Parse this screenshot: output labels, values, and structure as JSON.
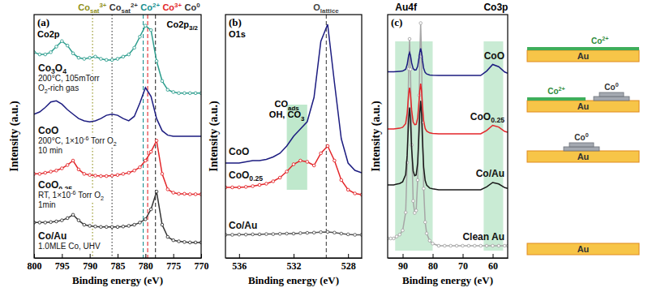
{
  "chart_data": [
    {
      "type": "line",
      "panel_label": "(a)",
      "title": "Co2p",
      "x_label": "Binding energy (eV)",
      "y_label": "Intensity (a.u.)",
      "xlim": [
        800,
        770
      ],
      "xticks": [
        800,
        795,
        790,
        785,
        780,
        775,
        770
      ],
      "ylim": [
        0,
        11
      ],
      "tick_labels": "x",
      "peak_label": [
        "Co2p",
        {
          "sub": "3/2"
        }
      ],
      "ref_lines": [
        {
          "x": 789.5,
          "label": [
            "Co",
            {
              "sub": "sat"
            },
            {
              "sup": "3+"
            }
          ],
          "color": "#8f8f18",
          "line_style": "dotted"
        },
        {
          "x": 786,
          "label": [
            "Co",
            {
              "sub": "sat"
            },
            {
              "sup": "2+"
            }
          ],
          "color": "#333333",
          "line_style": "dotted"
        },
        {
          "x": 780.4,
          "label": [
            "Co",
            {
              "sup": "2+"
            }
          ],
          "color": "#178f8f",
          "line_style": "dashed"
        },
        {
          "x": 779.6,
          "label": [
            "Co",
            {
              "sup": "3+"
            }
          ],
          "color": "#e3262a",
          "line_style": "dashed"
        },
        {
          "x": 778.2,
          "label": [
            "Co",
            {
              "sup": "0"
            }
          ],
          "color": "#333333",
          "line_style": "dashed"
        }
      ],
      "x": [
        800,
        799,
        798,
        797,
        796,
        795,
        794,
        793,
        792,
        791,
        790,
        789,
        788,
        787,
        786,
        785,
        784,
        783,
        782,
        781,
        780,
        779,
        778,
        777,
        776,
        775,
        774,
        773,
        772,
        771,
        770
      ],
      "series": [
        {
          "label": "Co/Au",
          "conditions": [
            "1.0MLE Co, UHV"
          ],
          "color": "#333333",
          "marker": "circle",
          "values": [
            1.6,
            1.6,
            1.6,
            1.62,
            1.65,
            1.7,
            1.8,
            1.95,
            1.7,
            1.5,
            1.45,
            1.42,
            1.4,
            1.4,
            1.4,
            1.4,
            1.42,
            1.45,
            1.5,
            1.6,
            1.75,
            2.2,
            3.0,
            1.5,
            0.95,
            0.8,
            0.75,
            0.72,
            0.7,
            0.7,
            0.7
          ]
        },
        {
          "label": [
            "CoO",
            {
              "sub": "0.25"
            }
          ],
          "conditions": [
            [
              "RT, 1×10",
              {
                "sup": "-6"
              },
              " Torr O",
              {
                "sub": "2"
              }
            ],
            "1min"
          ],
          "color": "#e3262a",
          "marker": "circle",
          "values": [
            3.8,
            3.8,
            3.85,
            3.9,
            3.95,
            4.05,
            4.2,
            4.4,
            4.0,
            3.8,
            3.75,
            3.72,
            3.7,
            3.7,
            3.72,
            3.75,
            3.8,
            3.85,
            3.95,
            4.1,
            4.4,
            4.8,
            5.3,
            3.8,
            3.1,
            2.95,
            2.9,
            2.9,
            2.88,
            2.88,
            2.88
          ]
        },
        {
          "label": "CoO",
          "conditions": [
            [
              "200°C, 1×10",
              {
                "sup": "-6"
              },
              " Torr O",
              {
                "sub": "2"
              }
            ],
            "10 min"
          ],
          "color": "#1c1c80",
          "values": [
            6.5,
            6.6,
            6.8,
            7.05,
            7.1,
            6.95,
            6.7,
            6.5,
            6.3,
            6.2,
            6.15,
            6.2,
            6.3,
            6.45,
            6.5,
            6.45,
            6.3,
            6.2,
            6.4,
            7.0,
            7.7,
            7.3,
            6.3,
            5.75,
            5.55,
            5.5,
            5.5,
            5.5,
            5.5,
            5.5,
            5.5
          ]
        },
        {
          "label": [
            "Co",
            {
              "sub": "3"
            },
            "O",
            {
              "sub": "4"
            }
          ],
          "conditions": [
            "200°C, 105mTorr",
            [
              "O",
              {
                "sub": "2"
              },
              "-rich gas"
            ]
          ],
          "color": "#2e9e8e",
          "marker": "circle",
          "values": [
            9.3,
            9.2,
            9.2,
            9.3,
            9.55,
            9.8,
            9.6,
            9.25,
            9.05,
            9.0,
            9.05,
            9.1,
            9.0,
            8.95,
            8.95,
            9.0,
            9.1,
            9.2,
            9.5,
            10.0,
            10.5,
            10.3,
            8.9,
            8.0,
            7.6,
            7.5,
            7.45,
            7.45,
            7.45,
            7.45,
            7.45
          ]
        }
      ]
    },
    {
      "type": "line",
      "panel_label": "(b)",
      "title": "O1s",
      "x_label": "Binding energy (eV)",
      "y_label": "Intensity (a.u.)",
      "xlim": [
        537,
        527
      ],
      "xticks": [
        536,
        532,
        528
      ],
      "ylim": [
        0,
        10
      ],
      "tick_labels": "x",
      "ref_lines": [
        {
          "x": 529.6,
          "label": [
            "O",
            {
              "sub": "lattice"
            }
          ],
          "color": "#444444",
          "line_style": "dashed"
        }
      ],
      "highlights": [
        {
          "x": [
            532.5,
            531
          ],
          "y": [
            2.8,
            6.3
          ],
          "color": "#bfe8cc",
          "lines": [
            [
              "CO",
              {
                "sub": "ads"
              }
            ],
            [
              "OH, CO",
              {
                "sub": "3"
              }
            ]
          ]
        }
      ],
      "x": [
        537,
        536.5,
        536,
        535.5,
        535,
        534.5,
        534,
        533.5,
        533,
        532.5,
        532,
        531.5,
        531,
        530.5,
        530,
        529.5,
        529,
        528.5,
        528,
        527.5,
        527
      ],
      "series": [
        {
          "label": "Co/Au",
          "color": "#555555",
          "marker": "circle",
          "values": [
            0.95,
            0.95,
            0.96,
            0.96,
            0.97,
            0.97,
            0.98,
            0.98,
            0.99,
            1.0,
            1.0,
            1.02,
            1.03,
            1.04,
            1.06,
            1.07,
            1.04,
            1.0,
            0.97,
            0.95,
            0.95
          ]
        },
        {
          "label": [
            "CoO",
            {
              "sub": "0.25"
            }
          ],
          "color": "#e3262a",
          "marker": "circle",
          "values": [
            2.9,
            2.9,
            2.9,
            2.92,
            2.95,
            3.0,
            3.05,
            3.15,
            3.3,
            3.55,
            3.85,
            4.0,
            3.95,
            3.8,
            4.3,
            4.6,
            4.0,
            3.2,
            2.8,
            2.65,
            2.6
          ]
        },
        {
          "label": "CoO",
          "color": "#1c1c80",
          "values": [
            3.9,
            3.9,
            3.9,
            3.95,
            4.0,
            4.0,
            4.05,
            4.15,
            4.3,
            4.6,
            5.0,
            5.3,
            5.6,
            6.6,
            8.9,
            9.6,
            7.2,
            4.9,
            3.9,
            3.6,
            3.5
          ]
        }
      ]
    },
    {
      "type": "line",
      "panel_label": "(c)",
      "x_label": "Binding energy (eV)",
      "y_label": "Intensity (a.u.)",
      "xlim": [
        95,
        55
      ],
      "xticks": [
        90,
        80,
        70,
        60
      ],
      "ylim": [
        0,
        10
      ],
      "tick_labels": "x",
      "highlights": [
        {
          "x": [
            92.5,
            80
          ],
          "y": [
            0.3,
            8.9
          ],
          "color": "#c9ebd4",
          "label": "Au4f"
        },
        {
          "x": [
            63,
            56.5
          ],
          "y": [
            0.3,
            8.9
          ],
          "color": "#c9ebd4",
          "label": "Co3p"
        }
      ],
      "x": [
        95,
        94,
        93,
        92,
        91,
        90,
        89,
        88.5,
        88,
        87.7,
        87.4,
        87,
        86.5,
        86,
        85.5,
        85,
        84.5,
        84.3,
        84,
        83.7,
        83.4,
        83,
        82.5,
        82,
        81,
        80,
        78,
        76,
        74,
        72,
        70,
        68,
        66,
        64,
        62,
        60,
        58,
        56,
        55
      ],
      "series": [
        {
          "label": "Clean Au",
          "color": "#a6a6a6",
          "marker": "circle",
          "values": [
            0.8,
            0.8,
            0.8,
            0.88,
            0.96,
            1.13,
            1.87,
            3.92,
            7.77,
            9.0,
            7.75,
            4.64,
            2.34,
            1.85,
            1.95,
            3.2,
            6.68,
            8.31,
            9.65,
            8.28,
            5.57,
            2.85,
            1.47,
            1.01,
            0.71,
            0.59,
            0.5,
            0.5,
            0.5,
            0.5,
            0.5,
            0.5,
            0.5,
            0.5,
            0.5,
            0.5,
            0.5,
            0.5,
            0.5
          ]
        },
        {
          "label": "Co/Au",
          "color": "#1a1a1a",
          "values": [
            3.0,
            3.0,
            3.0,
            3.03,
            3.06,
            3.13,
            3.42,
            4.22,
            5.72,
            6.18,
            5.69,
            4.47,
            3.57,
            3.38,
            3.41,
            3.9,
            5.28,
            5.93,
            6.46,
            5.91,
            4.82,
            3.73,
            3.18,
            2.99,
            2.87,
            2.84,
            2.8,
            2.8,
            2.8,
            2.8,
            2.8,
            2.8,
            2.8,
            2.8,
            2.92,
            3.1,
            3.04,
            2.89,
            2.86
          ]
        },
        {
          "label": [
            "CoO",
            {
              "sub": "0.25"
            }
          ],
          "color": "#e3262a",
          "values": [
            5.3,
            5.3,
            5.3,
            5.32,
            5.33,
            5.37,
            5.52,
            5.95,
            6.75,
            7.0,
            6.72,
            6.07,
            5.58,
            5.48,
            5.49,
            5.75,
            6.51,
            6.87,
            7.16,
            6.85,
            6.24,
            5.63,
            5.32,
            5.21,
            5.14,
            5.12,
            5.1,
            5.1,
            5.1,
            5.1,
            5.1,
            5.1,
            5.1,
            5.1,
            5.24,
            5.45,
            5.38,
            5.2,
            5.17
          ]
        },
        {
          "label": "CoO",
          "color": "#1c1c80",
          "values": [
            7.65,
            7.65,
            7.65,
            7.66,
            7.67,
            7.68,
            7.75,
            7.95,
            8.33,
            8.44,
            8.32,
            8.01,
            7.78,
            7.72,
            7.73,
            7.87,
            8.27,
            8.45,
            8.61,
            8.44,
            8.12,
            7.79,
            7.62,
            7.56,
            7.52,
            7.51,
            7.5,
            7.5,
            7.5,
            7.5,
            7.5,
            7.5,
            7.5,
            7.5,
            7.68,
            7.95,
            7.86,
            7.64,
            7.59
          ]
        }
      ]
    }
  ],
  "schematics": [
    {
      "substrate": "Au",
      "film": [
        "Co",
        {
          "sup": "2+"
        }
      ],
      "islands": null
    },
    {
      "substrate": "Au",
      "film": [
        "Co",
        {
          "sup": "2+"
        }
      ],
      "islands": [
        "Co",
        {
          "sup": "0"
        }
      ]
    },
    {
      "substrate": "Au",
      "film": null,
      "islands": [
        "Co",
        {
          "sup": "0"
        }
      ]
    },
    {
      "substrate": "Au",
      "film": null,
      "islands": null
    }
  ]
}
